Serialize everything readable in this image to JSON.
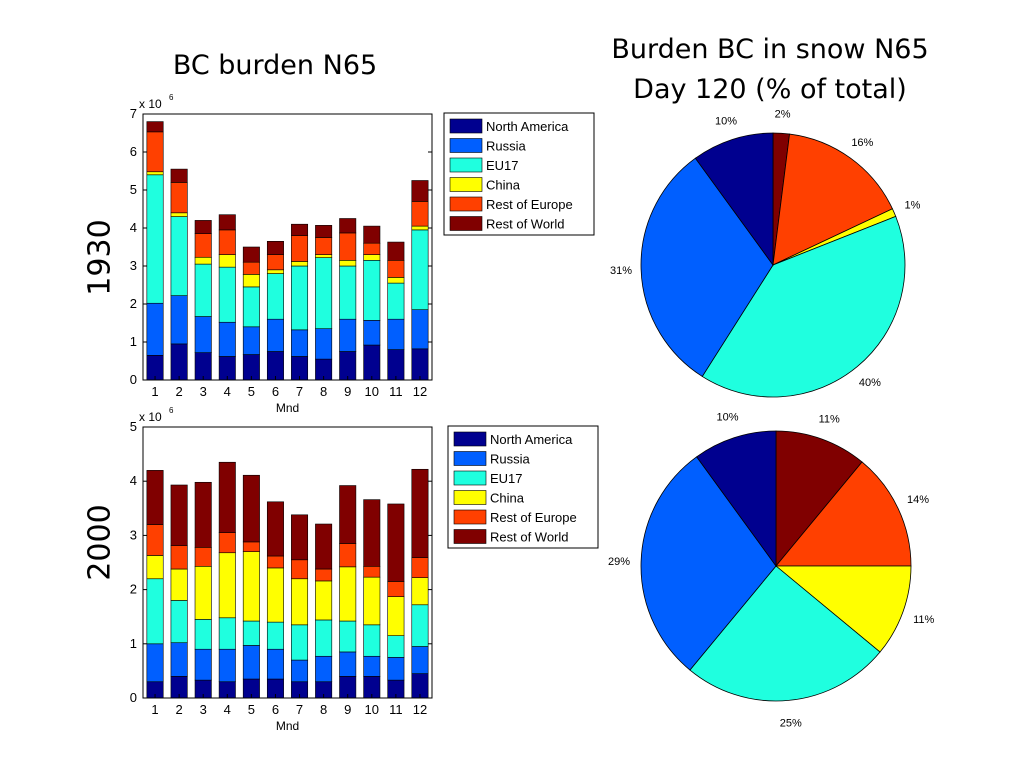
{
  "titles": {
    "left": "BC burden N65",
    "right_line1": "Burden BC in snow N65",
    "right_line2": "Day 120 (% of total)"
  },
  "row_labels": [
    "1930",
    "2000"
  ],
  "colors": {
    "North America": "#00008f",
    "Russia": "#005fff",
    "EU17": "#1fffdf",
    "China": "#ffff00",
    "Rest of Europe": "#ff4000",
    "Rest of World": "#800000"
  },
  "chart_data": [
    {
      "type": "bar",
      "stacked": true,
      "panel": "1930",
      "xlabel": "Mnd",
      "ylabel": "",
      "exponent_label": "x 10",
      "exponent": "6",
      "categories": [
        "1",
        "2",
        "3",
        "4",
        "5",
        "6",
        "7",
        "8",
        "9",
        "10",
        "11",
        "12"
      ],
      "ylim": [
        0,
        7
      ],
      "yticks": [
        0,
        1,
        2,
        3,
        4,
        5,
        6,
        7
      ],
      "legend_position": "right",
      "series": [
        {
          "name": "North America",
          "values": [
            0.65,
            0.95,
            0.72,
            0.62,
            0.67,
            0.75,
            0.62,
            0.55,
            0.75,
            0.92,
            0.8,
            0.82
          ]
        },
        {
          "name": "Russia",
          "values": [
            1.37,
            1.27,
            0.95,
            0.9,
            0.73,
            0.85,
            0.7,
            0.8,
            0.85,
            0.65,
            0.8,
            1.03
          ]
        },
        {
          "name": "EU17",
          "values": [
            3.38,
            2.08,
            1.38,
            1.45,
            1.05,
            1.2,
            1.68,
            1.87,
            1.4,
            1.58,
            0.95,
            2.1
          ]
        },
        {
          "name": "China",
          "values": [
            0.08,
            0.1,
            0.18,
            0.33,
            0.33,
            0.1,
            0.12,
            0.08,
            0.15,
            0.15,
            0.15,
            0.1
          ]
        },
        {
          "name": "Rest of Europe",
          "values": [
            1.05,
            0.8,
            0.62,
            0.65,
            0.32,
            0.4,
            0.68,
            0.45,
            0.72,
            0.3,
            0.45,
            0.65
          ]
        },
        {
          "name": "Rest of World",
          "values": [
            0.27,
            0.35,
            0.35,
            0.4,
            0.4,
            0.35,
            0.3,
            0.32,
            0.38,
            0.45,
            0.48,
            0.55
          ]
        }
      ]
    },
    {
      "type": "bar",
      "stacked": true,
      "panel": "2000",
      "xlabel": "Mnd",
      "ylabel": "",
      "exponent_label": "x 10",
      "exponent": "6",
      "categories": [
        "1",
        "2",
        "3",
        "4",
        "5",
        "6",
        "7",
        "8",
        "9",
        "10",
        "11",
        "12"
      ],
      "ylim": [
        0,
        5
      ],
      "yticks": [
        0,
        1,
        2,
        3,
        4,
        5
      ],
      "legend_position": "right",
      "series": [
        {
          "name": "North America",
          "values": [
            0.3,
            0.4,
            0.33,
            0.3,
            0.35,
            0.35,
            0.3,
            0.3,
            0.4,
            0.4,
            0.33,
            0.45
          ]
        },
        {
          "name": "Russia",
          "values": [
            0.7,
            0.62,
            0.57,
            0.6,
            0.62,
            0.55,
            0.4,
            0.47,
            0.45,
            0.37,
            0.42,
            0.5
          ]
        },
        {
          "name": "EU17",
          "values": [
            1.2,
            0.78,
            0.55,
            0.58,
            0.45,
            0.5,
            0.65,
            0.67,
            0.57,
            0.58,
            0.4,
            0.77
          ]
        },
        {
          "name": "China",
          "values": [
            0.43,
            0.58,
            0.98,
            1.2,
            1.28,
            1.0,
            0.85,
            0.72,
            1.0,
            0.88,
            0.72,
            0.5
          ]
        },
        {
          "name": "Rest of Europe",
          "values": [
            0.57,
            0.43,
            0.35,
            0.37,
            0.18,
            0.22,
            0.35,
            0.22,
            0.43,
            0.2,
            0.28,
            0.37
          ]
        },
        {
          "name": "Rest of World",
          "values": [
            1.0,
            1.12,
            1.2,
            1.3,
            1.23,
            1.0,
            0.83,
            0.83,
            1.07,
            1.23,
            1.43,
            1.63
          ]
        }
      ]
    },
    {
      "type": "pie",
      "panel": "1930",
      "order": [
        "North America",
        "Rest of World",
        "Rest of Europe",
        "China",
        "EU17",
        "Russia"
      ],
      "values": [
        10,
        2,
        16,
        1,
        40,
        31
      ],
      "labels": [
        "10%",
        "2%",
        "16%",
        "1%",
        "40%",
        "31%"
      ]
    },
    {
      "type": "pie",
      "panel": "2000",
      "order": [
        "North America",
        "Rest of World",
        "Rest of Europe",
        "China",
        "EU17",
        "Russia"
      ],
      "values": [
        10,
        11,
        14,
        11,
        25,
        29
      ],
      "labels": [
        "10%",
        "11%",
        "14%",
        "11%",
        "25%",
        "29%"
      ]
    }
  ]
}
